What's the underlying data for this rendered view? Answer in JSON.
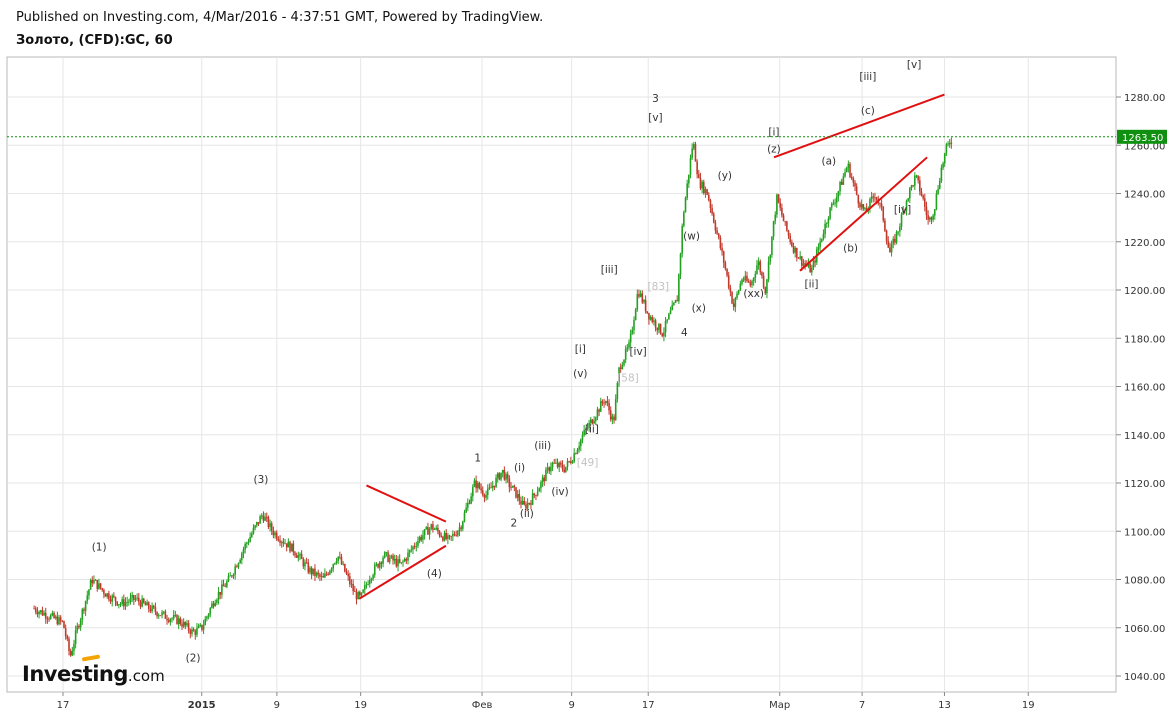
{
  "header": {
    "published": "Published on Investing.com, 4/Mar/2016 - 4:37:51 GMT, Powered by TradingView.",
    "symbol": "Золото, (CFD):GC, 60"
  },
  "logo": {
    "name": "Investing",
    "suffix": ".com"
  },
  "colors": {
    "up": "#22a020",
    "down": "#c0392b",
    "trendline": "#e01010",
    "price_line": "#109010",
    "grid": "#e6e6e6"
  },
  "chart_data": {
    "type": "candlestick",
    "y_range": [
      1035,
      1295
    ],
    "y_ticks": [
      1040,
      1060,
      1080,
      1100,
      1120,
      1140,
      1160,
      1180,
      1200,
      1220,
      1240,
      1260,
      1280
    ],
    "y_tick_labels": [
      "1040.00",
      "1060.00",
      "1080.00",
      "1100.00",
      "1120.00",
      "1140.00",
      "1160.00",
      "1180.00",
      "1200.00",
      "1220.00",
      "1240.00",
      "1260.00",
      "1280.00"
    ],
    "x_range": [
      -2,
      60.7
    ],
    "x_ticks": [
      {
        "label": "17",
        "t": 0
      },
      {
        "label": "2015",
        "t": 9.6,
        "bold": true
      },
      {
        "label": "9",
        "t": 14.8
      },
      {
        "label": "19",
        "t": 20.6
      },
      {
        "label": "Фев",
        "t": 29.0
      },
      {
        "label": "9",
        "t": 35.2
      },
      {
        "label": "17",
        "t": 40.5
      },
      {
        "label": "Мар",
        "t": 49.6
      },
      {
        "label": "7",
        "t": 55.3
      },
      {
        "label": "13",
        "t": 61.0
      },
      {
        "label": "19",
        "t": 66.8
      }
    ],
    "current_price": 1263.5,
    "current_price_label": "1263.50",
    "price_path": [
      [
        -2,
        1068
      ],
      [
        0,
        1062
      ],
      [
        0.5,
        1048
      ],
      [
        1,
        1060
      ],
      [
        2,
        1080
      ],
      [
        3,
        1074
      ],
      [
        4,
        1070
      ],
      [
        5,
        1072
      ],
      [
        6,
        1068
      ],
      [
        7,
        1065
      ],
      [
        8,
        1063
      ],
      [
        9,
        1058
      ],
      [
        9.6,
        1060
      ],
      [
        10.5,
        1072
      ],
      [
        11.5,
        1080
      ],
      [
        12.6,
        1094
      ],
      [
        13.8,
        1107
      ],
      [
        14.5,
        1100
      ],
      [
        16,
        1092
      ],
      [
        17,
        1084
      ],
      [
        18,
        1080
      ],
      [
        19,
        1090
      ],
      [
        20.2,
        1074
      ],
      [
        20.6,
        1072
      ],
      [
        21.2,
        1081
      ],
      [
        22.2,
        1090
      ],
      [
        23.4,
        1086
      ],
      [
        24.5,
        1096
      ],
      [
        25.5,
        1102
      ],
      [
        26.7,
        1096
      ],
      [
        27.5,
        1102
      ],
      [
        28.5,
        1120
      ],
      [
        29.3,
        1115
      ],
      [
        30.4,
        1125
      ],
      [
        30.8,
        1120
      ],
      [
        31.3,
        1116
      ],
      [
        31.9,
        1110
      ],
      [
        32.4,
        1113
      ],
      [
        33.1,
        1120
      ],
      [
        33.8,
        1128
      ],
      [
        34.7,
        1126
      ],
      [
        35.2,
        1130
      ],
      [
        36.0,
        1140
      ],
      [
        36.8,
        1148
      ],
      [
        37.5,
        1155
      ],
      [
        38.1,
        1145
      ],
      [
        38.5,
        1168
      ],
      [
        39.2,
        1177
      ],
      [
        39.8,
        1200
      ],
      [
        40.5,
        1190
      ],
      [
        41.0,
        1186
      ],
      [
        41.5,
        1182
      ],
      [
        42.0,
        1190
      ],
      [
        42.5,
        1196
      ],
      [
        42.9,
        1230
      ],
      [
        43.6,
        1262
      ],
      [
        44.0,
        1245
      ],
      [
        44.6,
        1240
      ],
      [
        45.2,
        1225
      ],
      [
        45.8,
        1210
      ],
      [
        46.4,
        1193
      ],
      [
        47.0,
        1205
      ],
      [
        47.6,
        1202
      ],
      [
        48.1,
        1212
      ],
      [
        48.6,
        1200
      ],
      [
        49.4,
        1238
      ],
      [
        50.0,
        1226
      ],
      [
        50.5,
        1218
      ],
      [
        51.1,
        1212
      ],
      [
        51.8,
        1208
      ],
      [
        52.4,
        1220
      ],
      [
        53.0,
        1232
      ],
      [
        53.6,
        1240
      ],
      [
        54.3,
        1252
      ],
      [
        55.0,
        1238
      ],
      [
        55.5,
        1232
      ],
      [
        56.2,
        1240
      ],
      [
        56.7,
        1232
      ],
      [
        57.2,
        1215
      ],
      [
        57.8,
        1225
      ],
      [
        58.4,
        1238
      ],
      [
        59.0,
        1247
      ],
      [
        59.5,
        1238
      ],
      [
        59.9,
        1228
      ],
      [
        60.3,
        1234
      ],
      [
        60.7,
        1248
      ],
      [
        61.1,
        1258
      ],
      [
        61.5,
        1263
      ]
    ],
    "annotations": [
      {
        "text": "(1)",
        "t": 2.5,
        "y": 1092
      },
      {
        "text": "(2)",
        "t": 9.0,
        "y": 1046
      },
      {
        "text": "(3)",
        "t": 13.7,
        "y": 1120
      },
      {
        "text": "(4)",
        "t": 25.7,
        "y": 1081
      },
      {
        "text": "1",
        "t": 28.7,
        "y": 1129
      },
      {
        "text": "2",
        "t": 31.2,
        "y": 1102
      },
      {
        "text": "(i)",
        "t": 31.6,
        "y": 1125
      },
      {
        "text": "(ii)",
        "t": 32.1,
        "y": 1106
      },
      {
        "text": "(iii)",
        "t": 33.2,
        "y": 1134
      },
      {
        "text": "(iv)",
        "t": 34.4,
        "y": 1115
      },
      {
        "text": "[49]",
        "t": 36.3,
        "y": 1127,
        "grey": true
      },
      {
        "text": "[ii]",
        "t": 36.6,
        "y": 1141
      },
      {
        "text": "(v)",
        "t": 35.8,
        "y": 1164
      },
      {
        "text": "[i]",
        "t": 35.8,
        "y": 1174
      },
      {
        "text": "[58]",
        "t": 39.1,
        "y": 1162,
        "grey": true
      },
      {
        "text": "[iv]",
        "t": 39.8,
        "y": 1173
      },
      {
        "text": "[iii]",
        "t": 37.8,
        "y": 1207
      },
      {
        "text": "[83]",
        "t": 41.2,
        "y": 1200,
        "grey": true
      },
      {
        "text": "3",
        "t": 41.0,
        "y": 1278
      },
      {
        "text": "[v]",
        "t": 41.0,
        "y": 1270
      },
      {
        "text": "4",
        "t": 43.0,
        "y": 1181
      },
      {
        "text": "(w)",
        "t": 43.5,
        "y": 1221
      },
      {
        "text": "(x)",
        "t": 44.0,
        "y": 1191
      },
      {
        "text": "(y)",
        "t": 45.8,
        "y": 1246
      },
      {
        "text": "(xx)",
        "t": 47.8,
        "y": 1197
      },
      {
        "text": "[i]",
        "t": 49.2,
        "y": 1264
      },
      {
        "text": "(z)",
        "t": 49.2,
        "y": 1257
      },
      {
        "text": "[ii]",
        "t": 51.8,
        "y": 1201
      },
      {
        "text": "(a)",
        "t": 53.0,
        "y": 1252
      },
      {
        "text": "(b)",
        "t": 54.5,
        "y": 1216
      },
      {
        "text": "[iv]",
        "t": 58.1,
        "y": 1232
      },
      {
        "text": "[iii]",
        "t": 55.7,
        "y": 1287
      },
      {
        "text": "(c)",
        "t": 55.7,
        "y": 1273
      },
      {
        "text": "[v]",
        "t": 58.9,
        "y": 1292
      }
    ],
    "trendlines": [
      {
        "from": [
          20.5,
          1072
        ],
        "to": [
          26.5,
          1094
        ]
      },
      {
        "from": [
          21.0,
          1119
        ],
        "to": [
          26.5,
          1104
        ]
      },
      {
        "from": [
          49.2,
          1255
        ],
        "to": [
          61.0,
          1281
        ]
      },
      {
        "from": [
          51.0,
          1208
        ],
        "to": [
          59.8,
          1255
        ]
      }
    ]
  }
}
